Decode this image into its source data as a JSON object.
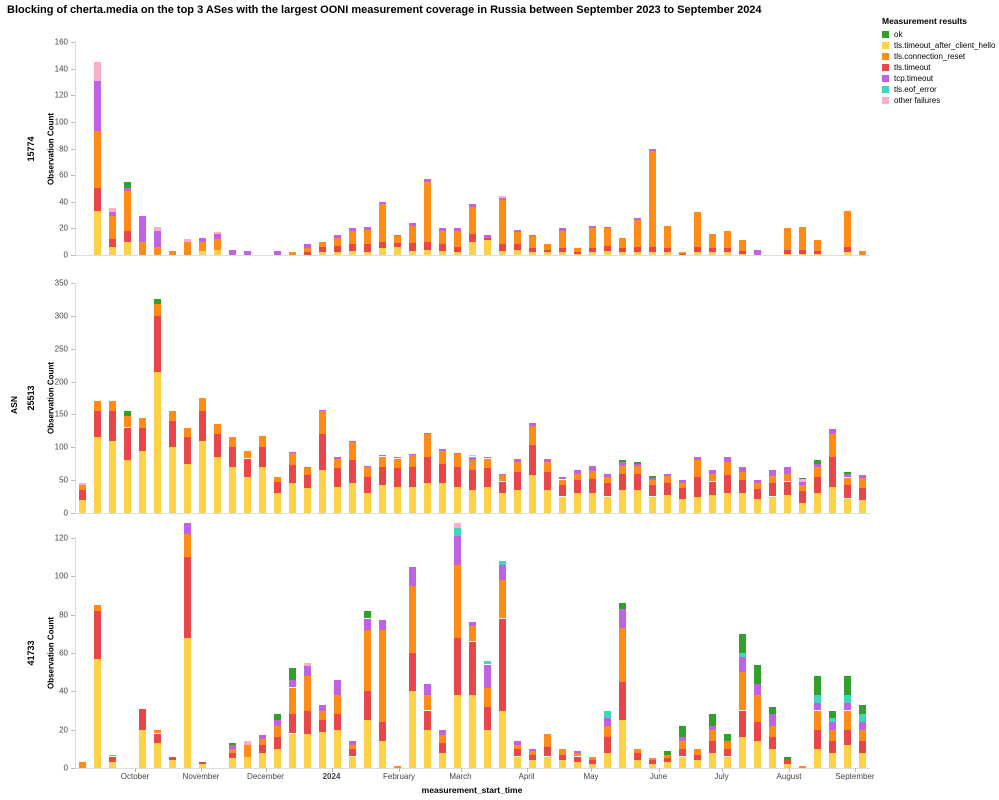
{
  "title": "Blocking of cherta.media on the top 3 ASes with the largest OONI measurement coverage in Russia between September 2023 to September 2024",
  "legend": {
    "title": "Measurement results",
    "items": [
      {
        "label": "ok",
        "color": "#33a02c"
      },
      {
        "label": "tls.timeout_after_client_hello",
        "color": "#ffd146"
      },
      {
        "label": "tls.connection_reset",
        "color": "#ff8c17"
      },
      {
        "label": "tls.timeout",
        "color": "#e9464a"
      },
      {
        "label": "tcp.timeout",
        "color": "#bf62e3"
      },
      {
        "label": "tls.eof_error",
        "color": "#41d6b9"
      },
      {
        "label": "other failures",
        "color": "#f8b0c9"
      }
    ]
  },
  "axes": {
    "x_title": "measurement_start_time",
    "y_title": "Observation Count",
    "facet_title": "ASN",
    "x_ticks": [
      {
        "label": "October",
        "week": 4
      },
      {
        "label": "November",
        "week": 8.4
      },
      {
        "label": "December",
        "week": 12.7
      },
      {
        "label": "2024",
        "week": 17.1,
        "bold": true
      },
      {
        "label": "February",
        "week": 21.6
      },
      {
        "label": "March",
        "week": 25.7
      },
      {
        "label": "April",
        "week": 30.1
      },
      {
        "label": "May",
        "week": 34.4
      },
      {
        "label": "June",
        "week": 38.9
      },
      {
        "label": "July",
        "week": 43.1
      },
      {
        "label": "August",
        "week": 47.6
      },
      {
        "label": "September",
        "week": 52
      }
    ]
  },
  "chart_data": {
    "type": "bar",
    "stacked": true,
    "weeks": 53,
    "x_range": "weekly bins, September 2023 to September 2024",
    "series": [
      {
        "key": "tls.timeout_after_client_hello",
        "color": "#ffd146"
      },
      {
        "key": "tls.timeout",
        "color": "#e9464a"
      },
      {
        "key": "tls.connection_reset",
        "color": "#ff8c17"
      },
      {
        "key": "tcp.timeout",
        "color": "#bf62e3"
      },
      {
        "key": "tls.eof_error",
        "color": "#41d6b9"
      },
      {
        "key": "other failures",
        "color": "#f8b0c9"
      },
      {
        "key": "ok",
        "color": "#33a02c"
      }
    ],
    "facets": [
      {
        "asn": "15774",
        "ylim": [
          0,
          160
        ],
        "ytick_step": 20,
        "bars": [
          [],
          [
            33,
            17,
            43,
            38,
            0,
            14
          ],
          [
            6,
            6,
            17,
            3,
            0,
            3
          ],
          [
            10,
            8,
            30,
            2,
            0,
            0,
            5
          ],
          [
            0,
            0,
            10,
            19
          ],
          [
            0,
            0,
            6,
            12,
            0,
            3
          ],
          [
            0,
            0,
            3
          ],
          [
            0,
            0,
            10,
            0,
            0,
            2
          ],
          [
            3,
            0,
            7,
            3
          ],
          [
            4,
            0,
            8,
            4,
            0,
            1
          ],
          [
            0,
            0,
            0,
            4
          ],
          [
            0,
            0,
            0,
            3
          ],
          [],
          [
            0,
            0,
            0,
            3
          ],
          [
            0,
            0,
            2
          ],
          [
            0,
            2,
            3,
            3
          ],
          [
            2,
            4,
            4
          ],
          [
            2,
            5,
            6,
            2
          ],
          [
            3,
            5,
            10,
            2
          ],
          [
            2,
            6,
            11,
            2
          ],
          [
            5,
            5,
            28,
            2
          ],
          [
            6,
            3,
            5,
            1
          ],
          [
            3,
            6,
            13,
            2
          ],
          [
            4,
            6,
            45,
            2
          ],
          [
            3,
            5,
            10,
            2
          ],
          [
            2,
            4,
            12,
            2
          ],
          [
            10,
            6,
            20,
            2
          ],
          [
            11,
            2,
            0,
            2
          ],
          [
            3,
            5,
            33,
            2,
            0,
            1
          ],
          [
            4,
            4,
            9,
            2
          ],
          [
            2,
            3,
            9,
            1
          ],
          [
            2,
            2,
            4
          ],
          [
            2,
            3,
            13,
            2
          ],
          [
            1,
            1,
            3
          ],
          [
            2,
            3,
            15,
            2
          ],
          [
            3,
            4,
            13,
            1
          ],
          [
            2,
            3,
            8
          ],
          [
            2,
            4,
            20,
            2
          ],
          [
            2,
            4,
            72,
            2
          ],
          [
            2,
            3,
            17
          ],
          [
            0,
            1,
            1
          ],
          [
            2,
            4,
            26
          ],
          [
            2,
            3,
            11
          ],
          [
            2,
            3,
            13
          ],
          [
            1,
            2,
            8
          ],
          [
            0,
            0,
            0,
            4
          ],
          [],
          [
            1,
            3,
            16
          ],
          [
            1,
            3,
            17
          ],
          [
            1,
            2,
            8
          ],
          [],
          [
            2,
            4,
            27
          ],
          [
            0,
            0,
            3
          ]
        ]
      },
      {
        "asn": "25513",
        "ylim": [
          0,
          350
        ],
        "ytick_step": 50,
        "bars": [
          [
            20,
            15,
            8,
            0,
            0,
            2
          ],
          [
            115,
            40,
            15
          ],
          [
            110,
            45,
            15
          ],
          [
            80,
            50,
            18,
            0,
            0,
            0,
            7
          ],
          [
            95,
            35,
            15
          ],
          [
            215,
            85,
            18,
            0,
            0,
            0,
            7
          ],
          [
            100,
            40,
            15
          ],
          [
            75,
            40,
            15
          ],
          [
            110,
            45,
            20
          ],
          [
            85,
            35,
            15
          ],
          [
            70,
            30,
            15
          ],
          [
            55,
            28,
            12
          ],
          [
            70,
            30,
            18
          ],
          [
            30,
            17,
            8
          ],
          [
            45,
            28,
            18,
            2
          ],
          [
            38,
            20,
            10,
            2
          ],
          [
            65,
            55,
            35,
            2
          ],
          [
            40,
            28,
            15,
            3
          ],
          [
            45,
            35,
            28,
            2
          ],
          [
            30,
            25,
            15,
            2
          ],
          [
            42,
            28,
            16,
            2
          ],
          [
            40,
            28,
            15,
            2
          ],
          [
            40,
            30,
            18,
            2
          ],
          [
            45,
            40,
            35,
            2
          ],
          [
            45,
            30,
            20,
            3
          ],
          [
            40,
            30,
            20,
            2
          ],
          [
            35,
            30,
            15,
            4,
            2,
            2
          ],
          [
            40,
            28,
            15,
            2
          ],
          [
            30,
            18,
            10,
            2
          ],
          [
            35,
            28,
            15,
            4
          ],
          [
            58,
            45,
            30,
            4
          ],
          [
            35,
            28,
            15,
            4
          ],
          [
            25,
            18,
            8,
            4
          ],
          [
            30,
            20,
            10,
            5
          ],
          [
            30,
            22,
            12,
            8
          ],
          [
            25,
            20,
            10,
            5
          ],
          [
            35,
            25,
            12,
            5,
            0,
            0,
            3
          ],
          [
            35,
            25,
            12,
            3,
            0,
            0,
            3
          ],
          [
            25,
            18,
            8,
            3,
            0,
            0,
            3
          ],
          [
            28,
            18,
            10,
            4
          ],
          [
            22,
            16,
            8,
            4
          ],
          [
            25,
            30,
            25,
            5
          ],
          [
            28,
            20,
            12,
            5
          ],
          [
            30,
            28,
            20,
            7
          ],
          [
            30,
            20,
            12,
            8
          ],
          [
            22,
            15,
            8,
            5
          ],
          [
            25,
            20,
            12,
            8
          ],
          [
            28,
            20,
            12,
            10
          ],
          [
            15,
            18,
            10,
            4,
            0,
            5,
            2
          ],
          [
            30,
            25,
            15,
            5,
            0,
            0,
            5
          ],
          [
            40,
            45,
            35,
            8
          ],
          [
            22,
            20,
            12,
            5,
            0,
            0,
            3
          ],
          [
            20,
            18,
            15,
            5
          ]
        ]
      },
      {
        "asn": "41733",
        "ylim": [
          0,
          120
        ],
        "ytick_step": 20,
        "bars": [
          [
            0,
            0,
            3
          ],
          [
            57,
            25,
            3
          ],
          [
            3,
            3,
            1
          ],
          [],
          [
            20,
            11
          ],
          [
            13,
            5,
            2
          ],
          [
            4,
            2
          ],
          [
            68,
            42,
            12,
            6
          ],
          [
            2,
            1
          ],
          [],
          [
            5,
            3,
            2,
            2,
            0,
            0,
            1
          ],
          [
            6,
            0,
            6,
            0,
            0,
            2
          ],
          [
            8,
            4,
            3,
            2
          ],
          [
            10,
            6,
            6,
            3,
            0,
            0,
            3
          ],
          [
            18,
            10,
            14,
            4,
            0,
            0,
            6
          ],
          [
            18,
            12,
            18,
            5,
            0,
            2
          ],
          [
            19,
            6,
            5,
            3
          ],
          [
            20,
            8,
            10,
            8
          ],
          [
            6,
            4,
            2,
            2
          ],
          [
            25,
            15,
            32,
            6,
            0,
            0,
            4
          ],
          [
            14,
            10,
            48,
            5
          ],
          [
            0,
            0,
            1
          ],
          [
            40,
            20,
            35,
            10
          ],
          [
            20,
            10,
            8,
            6
          ],
          [
            8,
            5,
            4,
            3
          ],
          [
            38,
            30,
            38,
            15,
            4,
            3
          ],
          [
            38,
            28,
            8,
            2
          ],
          [
            20,
            12,
            10,
            12,
            2
          ],
          [
            30,
            48,
            20,
            8,
            2
          ],
          [
            6,
            4,
            2,
            2
          ],
          [
            4,
            3,
            2,
            1
          ],
          [
            6,
            5,
            7
          ],
          [
            4,
            3,
            3
          ],
          [
            3,
            3,
            2,
            1
          ],
          [
            2,
            2,
            2
          ],
          [
            8,
            8,
            6,
            4,
            4
          ],
          [
            25,
            20,
            28,
            10,
            0,
            0,
            3
          ],
          [
            4,
            4,
            2
          ],
          [
            2,
            2,
            1
          ],
          [
            3,
            2,
            2,
            0,
            0,
            0,
            2
          ],
          [
            6,
            4,
            4,
            2,
            0,
            0,
            6
          ],
          [
            4,
            3,
            3
          ],
          [
            8,
            6,
            6,
            2,
            0,
            0,
            6
          ],
          [
            6,
            4,
            4,
            0,
            0,
            0,
            4
          ],
          [
            16,
            14,
            20,
            8,
            2,
            0,
            10
          ],
          [
            14,
            10,
            14,
            6,
            0,
            0,
            10
          ],
          [
            10,
            6,
            6,
            6,
            0,
            0,
            4
          ],
          [
            2,
            2,
            0,
            0,
            0,
            0,
            2
          ],
          [
            0,
            0,
            1
          ],
          [
            10,
            10,
            10,
            4,
            4,
            0,
            10
          ],
          [
            8,
            6,
            6,
            4,
            2,
            0,
            4
          ],
          [
            12,
            8,
            10,
            4,
            4,
            0,
            10
          ],
          [
            8,
            6,
            6,
            4,
            4,
            0,
            5
          ]
        ]
      }
    ]
  }
}
